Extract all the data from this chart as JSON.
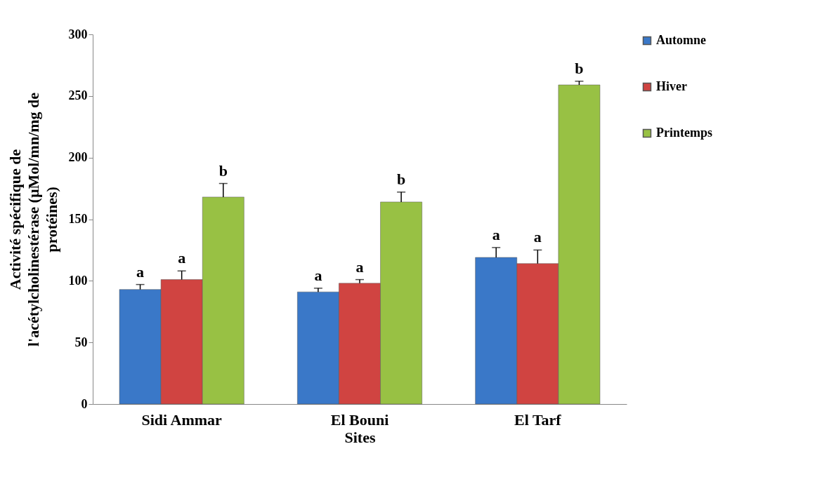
{
  "chart_data": {
    "type": "bar",
    "xlabel": "Sites",
    "ylabel": "Activité spécifique de\nl'acétylcholinestérase  (µMol/mn/mg de\nprotéines)",
    "categories": [
      "Sidi Ammar",
      "El Bouni",
      "El Tarf"
    ],
    "series": [
      {
        "name": "Automne",
        "color": "#3a78c8",
        "values": [
          93,
          91,
          119
        ],
        "errors": [
          [
            93,
            97
          ],
          [
            91,
            94
          ],
          [
            119,
            127
          ]
        ],
        "value_labels": [
          "a",
          "a",
          "a"
        ]
      },
      {
        "name": "Hiver",
        "color": "#d04441",
        "values": [
          101,
          98,
          114
        ],
        "errors": [
          [
            101,
            108
          ],
          [
            98,
            101
          ],
          [
            114,
            125
          ]
        ],
        "value_labels": [
          "a",
          "a",
          "a"
        ]
      },
      {
        "name": "Printemps",
        "color": "#98c144",
        "values": [
          168,
          164,
          259
        ],
        "errors": [
          [
            168,
            179
          ],
          [
            164,
            172
          ],
          [
            259,
            262
          ]
        ],
        "value_labels": [
          "b",
          "b",
          "b"
        ]
      }
    ],
    "ylim": [
      0,
      300
    ],
    "yticks": [
      0,
      50,
      100,
      150,
      200,
      250,
      300
    ],
    "grid": false,
    "legend": "top right"
  }
}
